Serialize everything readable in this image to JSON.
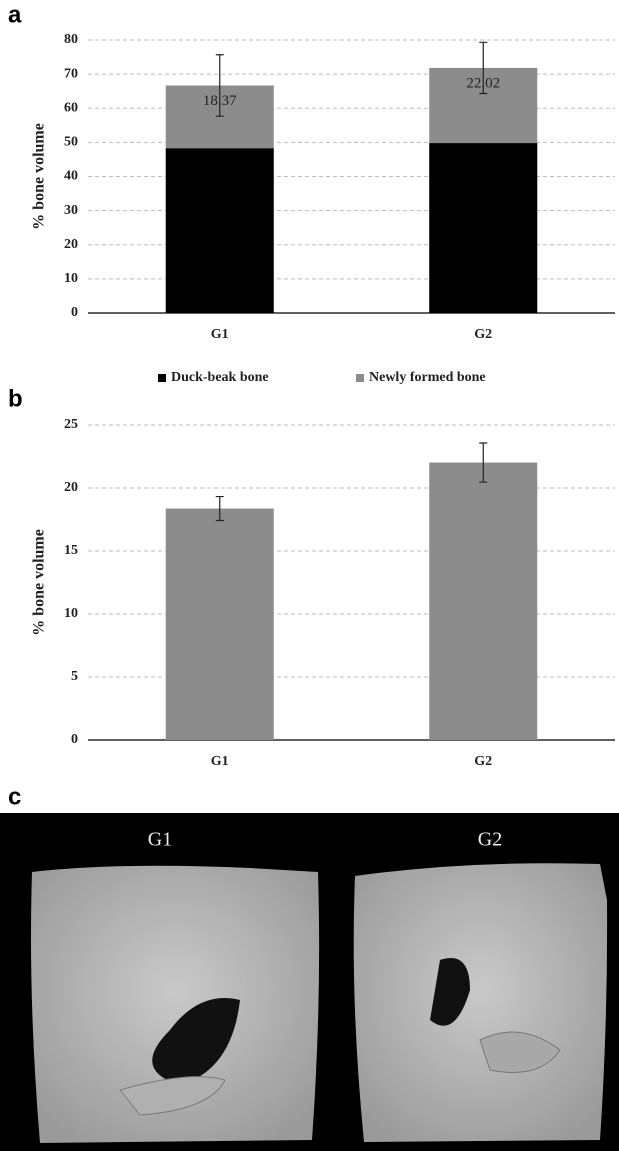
{
  "chart_data": [
    {
      "type": "bar",
      "panel_label": "a",
      "stacked": true,
      "y_label": "% bone volume",
      "categories": [
        "G1",
        "G2"
      ],
      "series": [
        {
          "name": "Duck-beak bone",
          "color": "#000000",
          "values": [
            48.3,
            49.8
          ]
        },
        {
          "name": "Newly formed bone",
          "color": "#8c8c8c",
          "values": [
            18.37,
            22.02
          ],
          "errors": [
            9.0,
            7.5
          ],
          "show_labels": true
        }
      ],
      "ylim": [
        0,
        80
      ],
      "yticks": [
        0,
        10,
        20,
        30,
        40,
        50,
        60,
        70,
        80
      ],
      "grid": true,
      "legend": "bottom"
    },
    {
      "type": "bar",
      "panel_label": "b",
      "y_label": "% bone volume",
      "categories": [
        "G1",
        "G2"
      ],
      "series": [
        {
          "color": "#8c8c8c",
          "values": [
            18.37,
            22.02
          ],
          "errors": [
            0.95,
            1.55
          ]
        }
      ],
      "ylim": [
        0,
        25
      ],
      "yticks": [
        0,
        5,
        10,
        15,
        20,
        25
      ],
      "grid": true
    }
  ],
  "image_panel": {
    "panel_label": "c",
    "labels": [
      "G1",
      "G2"
    ]
  }
}
